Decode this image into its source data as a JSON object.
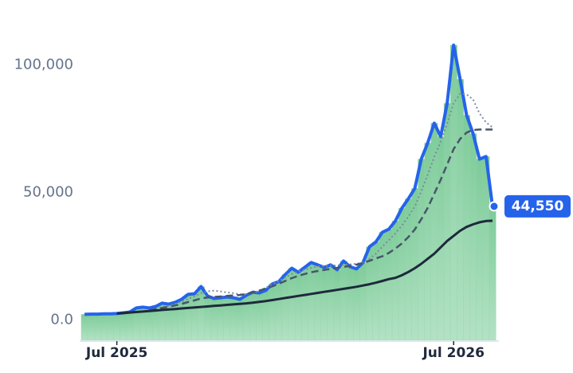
{
  "chart_data": {
    "type": "line",
    "x": [
      0,
      1,
      2,
      3,
      4,
      5,
      6,
      7,
      8,
      9,
      10,
      11,
      12,
      13,
      14,
      15,
      16,
      17,
      18,
      19,
      20,
      21,
      22,
      23,
      24,
      25,
      26,
      27,
      28,
      29,
      30,
      31,
      32,
      33,
      34,
      35,
      36,
      37,
      38,
      39,
      40,
      41,
      42,
      43,
      44,
      45,
      46,
      47,
      48,
      49,
      50,
      51,
      52,
      53,
      54,
      55,
      56,
      57,
      58,
      59,
      60,
      61,
      62,
      63
    ],
    "xlim": [
      0,
      63
    ],
    "xticks": [
      {
        "value": 5,
        "label": "Jul 2025"
      },
      {
        "value": 57,
        "label": "Jul 2026"
      }
    ],
    "ylim": [
      -8000,
      118000
    ],
    "yticks": [
      {
        "value": 0,
        "label": "0.0"
      },
      {
        "value": 50000,
        "label": "50,000"
      },
      {
        "value": 100000,
        "label": "100,000"
      }
    ],
    "bar_color": "#8fd3a8",
    "series": [
      {
        "color": "#2563eb",
        "style": "solid",
        "width": 4,
        "bars": true,
        "values": [
          2200,
          2300,
          2300,
          2400,
          2400,
          2500,
          2800,
          3100,
          4700,
          5000,
          4700,
          5300,
          6600,
          6200,
          6900,
          8100,
          10000,
          10300,
          13100,
          9400,
          8400,
          8700,
          9000,
          8700,
          8100,
          9700,
          10900,
          10600,
          11600,
          14100,
          15000,
          17800,
          20300,
          18700,
          20600,
          22500,
          21600,
          20600,
          21600,
          19700,
          23100,
          20900,
          20000,
          22500,
          28700,
          30600,
          34400,
          35600,
          38800,
          43800,
          47500,
          51600,
          63100,
          69400,
          77200,
          71900,
          85000,
          107800,
          94400,
          80300,
          73100,
          63100,
          64100,
          44550
        ],
        "value_labels": [
          null,
          null,
          null,
          null,
          null,
          null,
          null,
          null,
          null,
          null,
          null,
          null,
          null,
          null,
          null,
          null,
          null,
          null,
          null,
          null,
          null,
          null,
          null,
          null,
          null,
          null,
          null,
          null,
          null,
          null,
          null,
          null,
          null,
          null,
          null,
          null,
          null,
          null,
          null,
          null,
          null,
          null,
          null,
          null,
          null,
          null,
          null,
          null,
          null,
          null,
          null,
          null,
          null,
          null,
          null,
          null,
          null,
          null,
          null,
          null,
          null,
          null,
          null,
          "44,550"
        ]
      },
      {
        "color": "#7c8aa0",
        "style": "dotted",
        "width": 2,
        "values": [
          null,
          null,
          null,
          null,
          null,
          null,
          null,
          null,
          null,
          null,
          null,
          4300,
          5000,
          5600,
          6300,
          7200,
          8300,
          9300,
          10500,
          11200,
          11500,
          11200,
          10800,
          10500,
          10000,
          10100,
          10600,
          11500,
          12600,
          13900,
          15300,
          16700,
          18000,
          19000,
          19700,
          20400,
          21000,
          21200,
          21300,
          21400,
          21600,
          21800,
          22000,
          22600,
          24000,
          26000,
          28800,
          31300,
          34000,
          37000,
          40500,
          44500,
          50500,
          57000,
          64000,
          70000,
          77000,
          85000,
          88700,
          88500,
          86500,
          81000,
          77500,
          75500
        ]
      },
      {
        "color": "#475569",
        "style": "dashed",
        "width": 2.5,
        "values": [
          null,
          null,
          null,
          null,
          null,
          null,
          null,
          null,
          null,
          null,
          3800,
          4200,
          4700,
          5200,
          5700,
          6300,
          7000,
          7700,
          8400,
          8800,
          9000,
          9200,
          9400,
          9600,
          9800,
          10200,
          10800,
          11500,
          12300,
          13200,
          14200,
          15300,
          16400,
          17300,
          18000,
          18700,
          19200,
          19600,
          20000,
          20400,
          20800,
          21200,
          21700,
          22300,
          23200,
          24100,
          25000,
          26300,
          28000,
          30000,
          32500,
          35500,
          39500,
          44000,
          49500,
          55000,
          61000,
          67000,
          71000,
          73500,
          74500,
          74700,
          74700,
          74700
        ]
      },
      {
        "color": "#1e293b",
        "style": "solid",
        "width": 3,
        "values": [
          null,
          null,
          null,
          null,
          null,
          2500,
          2700,
          2900,
          3100,
          3300,
          3500,
          3700,
          3900,
          4100,
          4300,
          4500,
          4700,
          4900,
          5100,
          5300,
          5500,
          5700,
          5900,
          6100,
          6300,
          6500,
          6800,
          7100,
          7400,
          7800,
          8200,
          8600,
          9000,
          9400,
          9800,
          10200,
          10600,
          11000,
          11400,
          11800,
          12200,
          12600,
          13000,
          13500,
          14000,
          14600,
          15300,
          16000,
          16500,
          17500,
          18800,
          20300,
          22000,
          24000,
          26000,
          28500,
          31000,
          33000,
          35000,
          36500,
          37500,
          38300,
          38800,
          38900
        ]
      }
    ]
  }
}
